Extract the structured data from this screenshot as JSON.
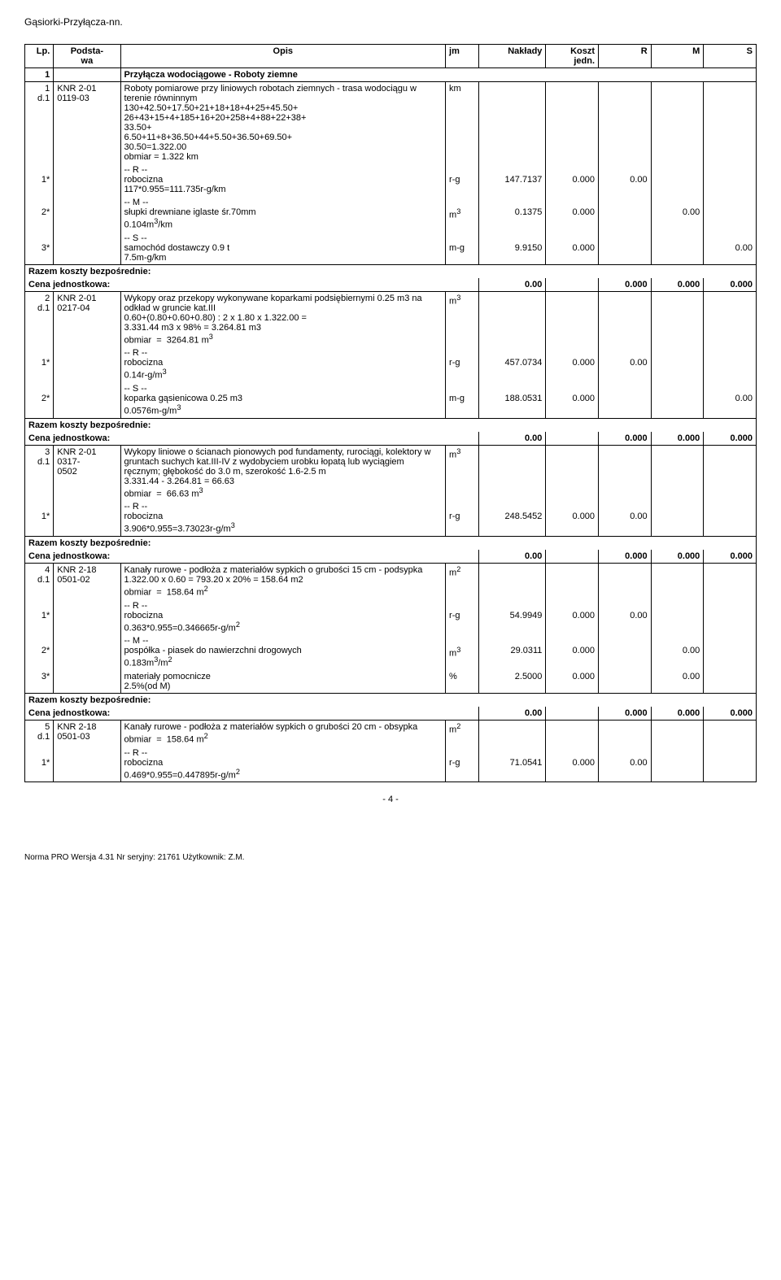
{
  "doc_title": "Gąsiorki-Przyłącza-nn.",
  "headers": {
    "lp": "Lp.",
    "podstawa": "Podsta-\nwa",
    "opis": "Opis",
    "jm": "jm",
    "naklady": "Nakłady",
    "koszt": "Koszt\njedn.",
    "r": "R",
    "m": "M",
    "s": "S"
  },
  "section1": {
    "lp": "1",
    "opis": "Przyłącza wodociągowe - Roboty ziemne"
  },
  "item1": {
    "lp": "1\nd.1",
    "podstawa": "KNR 2-01\n0119-03",
    "opis": "Roboty pomiarowe przy liniowych robotach ziemnych - trasa wodociągu w terenie równinnym\n130+42.50+17.50+21+18+18+4+25+45.50+\n26+43+15+4+185+16+20+258+4+88+22+38+\n33.50+\n6.50+11+8+36.50+44+5.50+36.50+69.50+\n30.50=1.322.00\nobmiar  =  1.322 km",
    "jm": "km"
  },
  "row1_1": {
    "lp": "1*",
    "opis": "-- R --\nrobocizna\n117*0.955=111.735r-g/km",
    "jm": "r-g",
    "naklady": "147.7137",
    "koszt": "0.000",
    "r": "0.00"
  },
  "row1_2": {
    "lp": "2*",
    "opis": "-- M --\nsłupki drewniane iglaste śr.70mm\n0.104m3/km",
    "jm": "m3",
    "jm_sup": "3",
    "naklady": "0.1375",
    "koszt": "0.000",
    "m": "0.00"
  },
  "row1_3": {
    "lp": "3*",
    "opis": "-- S --\nsamochód dostawczy 0.9 t\n7.5m-g/km",
    "jm": "m-g",
    "naklady": "9.9150",
    "koszt": "0.000",
    "s": "0.00"
  },
  "razem1": {
    "label": "Razem koszty bezpośrednie:"
  },
  "cena1": {
    "label": "Cena jednostkowa:",
    "val": "0.00",
    "r": "0.000",
    "m": "0.000",
    "s": "0.000"
  },
  "item2": {
    "lp": "2\nd.1",
    "podstawa": "KNR 2-01\n0217-04",
    "opis": "Wykopy oraz przekopy wykonywane koparkami podsiębiernymi 0.25 m3 na odkład w gruncie kat.III\n0.60+(0.80+0.60+0.80) : 2 x 1.80 x 1.322.00 =\n3.331.44 m3 x 98% = 3.264.81 m3\nobmiar  =  3264.81 m3",
    "jm_base": "m",
    "jm_sup": "3"
  },
  "row2_1": {
    "lp": "1*",
    "opis": "-- R --\nrobocizna\n0.14r-g/m3",
    "jm": "r-g",
    "naklady": "457.0734",
    "koszt": "0.000",
    "r": "0.00"
  },
  "row2_2": {
    "lp": "2*",
    "opis": "-- S --\nkoparka gąsienicowa 0.25 m3\n0.0576m-g/m3",
    "jm": "m-g",
    "naklady": "188.0531",
    "koszt": "0.000",
    "s": "0.00"
  },
  "razem2": {
    "label": "Razem koszty bezpośrednie:"
  },
  "cena2": {
    "label": "Cena jednostkowa:",
    "val": "0.00",
    "r": "0.000",
    "m": "0.000",
    "s": "0.000"
  },
  "item3": {
    "lp": "3\nd.1",
    "podstawa": "KNR 2-01\n0317-\n0502",
    "opis": "Wykopy liniowe o ścianach pionowych pod fundamenty, rurociągi, kolektory w gruntach suchych kat.III-IV z wydobyciem urobku łopatą lub wyciągiem ręcznym; głębokość do 3.0 m, szerokość 1.6-2.5 m\n3.331.44 - 3.264.81 = 66.63\nobmiar  =  66.63 m3",
    "jm_base": "m",
    "jm_sup": "3"
  },
  "row3_1": {
    "lp": "1*",
    "opis": "-- R --\nrobocizna\n3.906*0.955=3.73023r-g/m3",
    "jm": "r-g",
    "naklady": "248.5452",
    "koszt": "0.000",
    "r": "0.00"
  },
  "razem3": {
    "label": "Razem koszty bezpośrednie:"
  },
  "cena3": {
    "label": "Cena jednostkowa:",
    "val": "0.00",
    "r": "0.000",
    "m": "0.000",
    "s": "0.000"
  },
  "item4": {
    "lp": "4\nd.1",
    "podstawa": "KNR 2-18\n0501-02",
    "opis": "Kanały rurowe - podłoża z materiałów sypkich o grubości 15 cm - podsypka\n1.322.00 x 0.60 = 793.20 x 20% = 158.64 m2\nobmiar  =  158.64 m2",
    "jm_base": "m",
    "jm_sup": "2"
  },
  "row4_1": {
    "lp": "1*",
    "opis": "-- R --\nrobocizna\n0.363*0.955=0.346665r-g/m2",
    "jm": "r-g",
    "naklady": "54.9949",
    "koszt": "0.000",
    "r": "0.00"
  },
  "row4_2": {
    "lp": "2*",
    "opis": "-- M --\npospółka - piasek do nawierzchni drogowych\n0.183m3/m2",
    "jm_base": "m",
    "jm_sup": "3",
    "naklady": "29.0311",
    "koszt": "0.000",
    "m": "0.00"
  },
  "row4_3": {
    "lp": "3*",
    "opis": "materiały pomocnicze\n2.5%(od M)",
    "jm": "%",
    "naklady": "2.5000",
    "koszt": "0.000",
    "m": "0.00"
  },
  "razem4": {
    "label": "Razem koszty bezpośrednie:"
  },
  "cena4": {
    "label": "Cena jednostkowa:",
    "val": "0.00",
    "r": "0.000",
    "m": "0.000",
    "s": "0.000"
  },
  "item5": {
    "lp": "5\nd.1",
    "podstawa": "KNR 2-18\n0501-03",
    "opis": "Kanały rurowe - podłoża z materiałów sypkich o grubości 20 cm - obsypka\nobmiar  =  158.64 m2",
    "jm_base": "m",
    "jm_sup": "2"
  },
  "row5_1": {
    "lp": "1*",
    "opis": "-- R --\nrobocizna\n0.469*0.955=0.447895r-g/m2",
    "jm": "r-g",
    "naklady": "71.0541",
    "koszt": "0.000",
    "r": "0.00"
  },
  "footer": "- 4 -",
  "norma": "Norma PRO Wersja 4.31 Nr seryjny: 21761 Użytkownik: Z.M."
}
